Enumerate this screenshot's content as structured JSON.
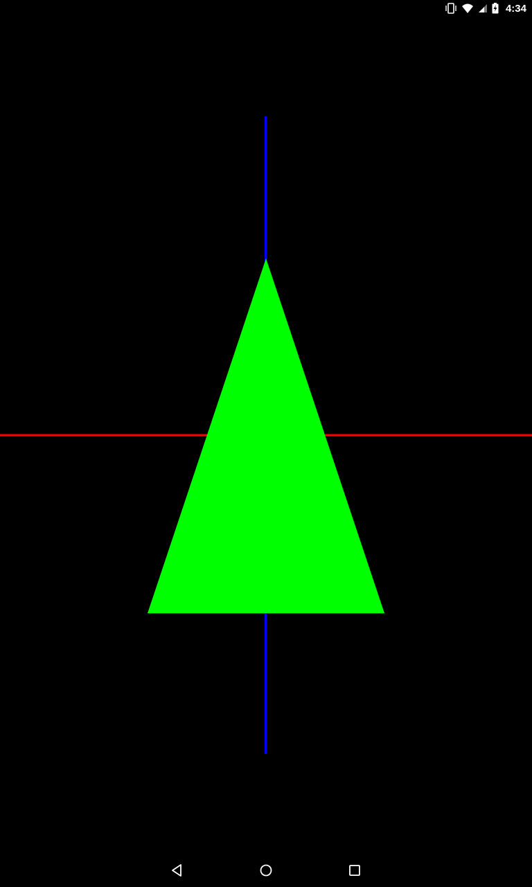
{
  "status_bar": {
    "time": "4:34",
    "icons": [
      "vibrate-icon",
      "wifi-icon",
      "cell-signal-icon",
      "battery-charging-icon"
    ]
  },
  "scene": {
    "background_color": "#000000",
    "axis_x_color": "#ff0000",
    "axis_y_color": "#0000ff",
    "triangle_color": "#00ff00"
  },
  "nav_bar": {
    "buttons": [
      "back-icon",
      "home-icon",
      "recents-icon"
    ]
  }
}
